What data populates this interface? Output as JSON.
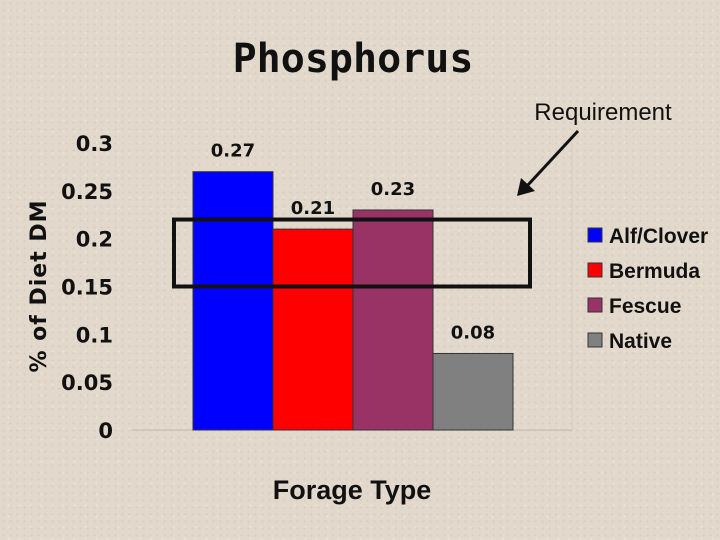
{
  "chart_data": {
    "type": "bar",
    "title": "Phosphorus",
    "xlabel": "Forage Type",
    "ylabel": "% of Diet DM",
    "ylim": [
      0,
      0.3
    ],
    "yticks": [
      "0",
      "0.05",
      "0.1",
      "0.15",
      "0.2",
      "0.25",
      "0.3"
    ],
    "grid": false,
    "legend_position": "right",
    "series": [
      {
        "name": "Alf/Clover",
        "value": 0.27,
        "label": "0.27",
        "color": "#0000ff"
      },
      {
        "name": "Bermuda",
        "value": 0.21,
        "label": "0.21",
        "color": "#ff0000"
      },
      {
        "name": "Fescue",
        "value": 0.23,
        "label": "0.23",
        "color": "#993366"
      },
      {
        "name": "Native",
        "value": 0.08,
        "label": "0.08",
        "color": "#808080"
      }
    ],
    "annotation": {
      "text": "Requirement",
      "range": [
        0.15,
        0.22
      ]
    }
  }
}
